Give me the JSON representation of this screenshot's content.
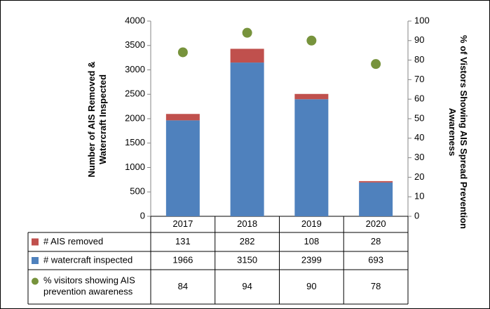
{
  "chart_data": {
    "type": "bar",
    "stacked": true,
    "ylabel": "Number of AIS Removed &\nWatercraft Inspected",
    "y2label": "% of Vistors Showing AIS Spread Prevention\nAwareness",
    "categories": [
      "2017",
      "2018",
      "2019",
      "2020"
    ],
    "series": [
      {
        "name": "# AIS removed",
        "color": "#c0504d",
        "type": "bar",
        "values": [
          131,
          282,
          108,
          28
        ]
      },
      {
        "name": "# watercraft inspected",
        "color": "#4f81bd",
        "type": "bar",
        "values": [
          1966,
          3150,
          2399,
          693
        ]
      },
      {
        "name": "% visitors showing AIS\nprevention awareness",
        "color": "#77933c",
        "type": "scatter",
        "axis": "y2",
        "values": [
          84,
          94,
          90,
          78
        ]
      }
    ],
    "ylim": [
      0,
      4000
    ],
    "yticks": [
      0,
      500,
      1000,
      1500,
      2000,
      2500,
      3000,
      3500,
      4000
    ],
    "y2lim": [
      0,
      100
    ],
    "y2ticks": [
      0,
      10,
      20,
      30,
      40,
      50,
      60,
      70,
      80,
      90,
      100
    ],
    "grid": false,
    "legend": "table"
  }
}
